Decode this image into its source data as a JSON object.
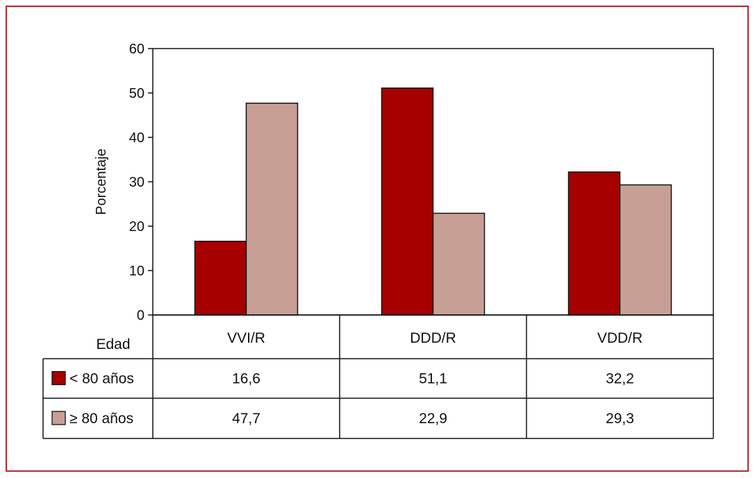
{
  "chart_data": {
    "type": "bar",
    "title": "",
    "xlabel": "",
    "ylabel": "Porcentaje",
    "ylim": [
      0,
      60
    ],
    "yticks": [
      0,
      10,
      20,
      30,
      40,
      50,
      60
    ],
    "categories": [
      "VVI/R",
      "DDD/R",
      "VDD/R"
    ],
    "series": [
      {
        "name": "< 80 años",
        "values": [
          16.6,
          51.1,
          32.2
        ],
        "labels": [
          "16,6",
          "51,1",
          "32,2"
        ],
        "color": "#a60000"
      },
      {
        "name": "≥ 80 años",
        "values": [
          47.7,
          22.9,
          29.3
        ],
        "labels": [
          "47,7",
          "22,9",
          "29,3"
        ],
        "color": "#c89f95"
      }
    ],
    "grid": false,
    "legend": "table-below"
  },
  "table": {
    "header_label": "Edad"
  },
  "colors": {
    "frame": "#b02a30",
    "bar_border": "#111111"
  }
}
